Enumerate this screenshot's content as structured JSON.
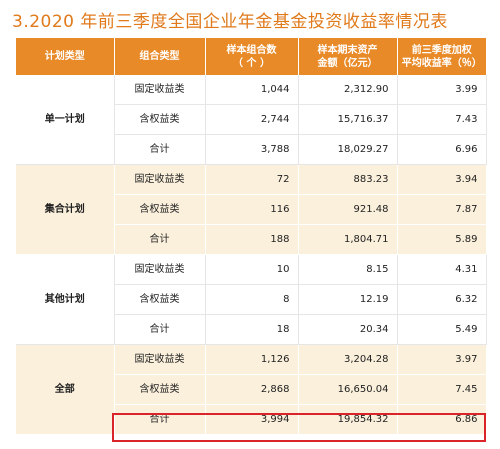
{
  "title": "3.2020 年前三季度全国企业年金基金投资收益率情况表",
  "headers": {
    "plan_type": "计划类型",
    "portfolio_type": "组合类型",
    "sample_count": [
      "样本组合数",
      "（ 个 ）"
    ],
    "sample_assets": [
      "样本期末资产",
      "金额（亿元）"
    ],
    "weighted_return": [
      "前三季度加权",
      "平均收益率（％）"
    ]
  },
  "groups": [
    {
      "name": "单一计划",
      "rows": [
        {
          "type": "固定收益类",
          "count": "1,044",
          "assets": "2,312.90",
          "rate": "3.99"
        },
        {
          "type": "含权益类",
          "count": "2,744",
          "assets": "15,716.37",
          "rate": "7.43"
        },
        {
          "type": "合计",
          "count": "3,788",
          "assets": "18,029.27",
          "rate": "6.96"
        }
      ]
    },
    {
      "name": "集合计划",
      "rows": [
        {
          "type": "固定收益类",
          "count": "72",
          "assets": "883.23",
          "rate": "3.94"
        },
        {
          "type": "含权益类",
          "count": "116",
          "assets": "921.48",
          "rate": "7.87"
        },
        {
          "type": "合计",
          "count": "188",
          "assets": "1,804.71",
          "rate": "5.89"
        }
      ]
    },
    {
      "name": "其他计划",
      "rows": [
        {
          "type": "固定收益类",
          "count": "10",
          "assets": "8.15",
          "rate": "4.31"
        },
        {
          "type": "含权益类",
          "count": "8",
          "assets": "12.19",
          "rate": "6.32"
        },
        {
          "type": "合计",
          "count": "18",
          "assets": "20.34",
          "rate": "5.49"
        }
      ]
    },
    {
      "name": "全部",
      "rows": [
        {
          "type": "固定收益类",
          "count": "1,126",
          "assets": "3,204.28",
          "rate": "3.97"
        },
        {
          "type": "含权益类",
          "count": "2,868",
          "assets": "16,650.04",
          "rate": "7.45"
        },
        {
          "type": "合计",
          "count": "3,994",
          "assets": "19,854.32",
          "rate": "6.86"
        }
      ]
    }
  ],
  "colors": {
    "title": "#e07a1b",
    "header_bg": "#e98a28",
    "shaded_row": "#fbf0dc",
    "highlight_border": "#d9252a"
  }
}
